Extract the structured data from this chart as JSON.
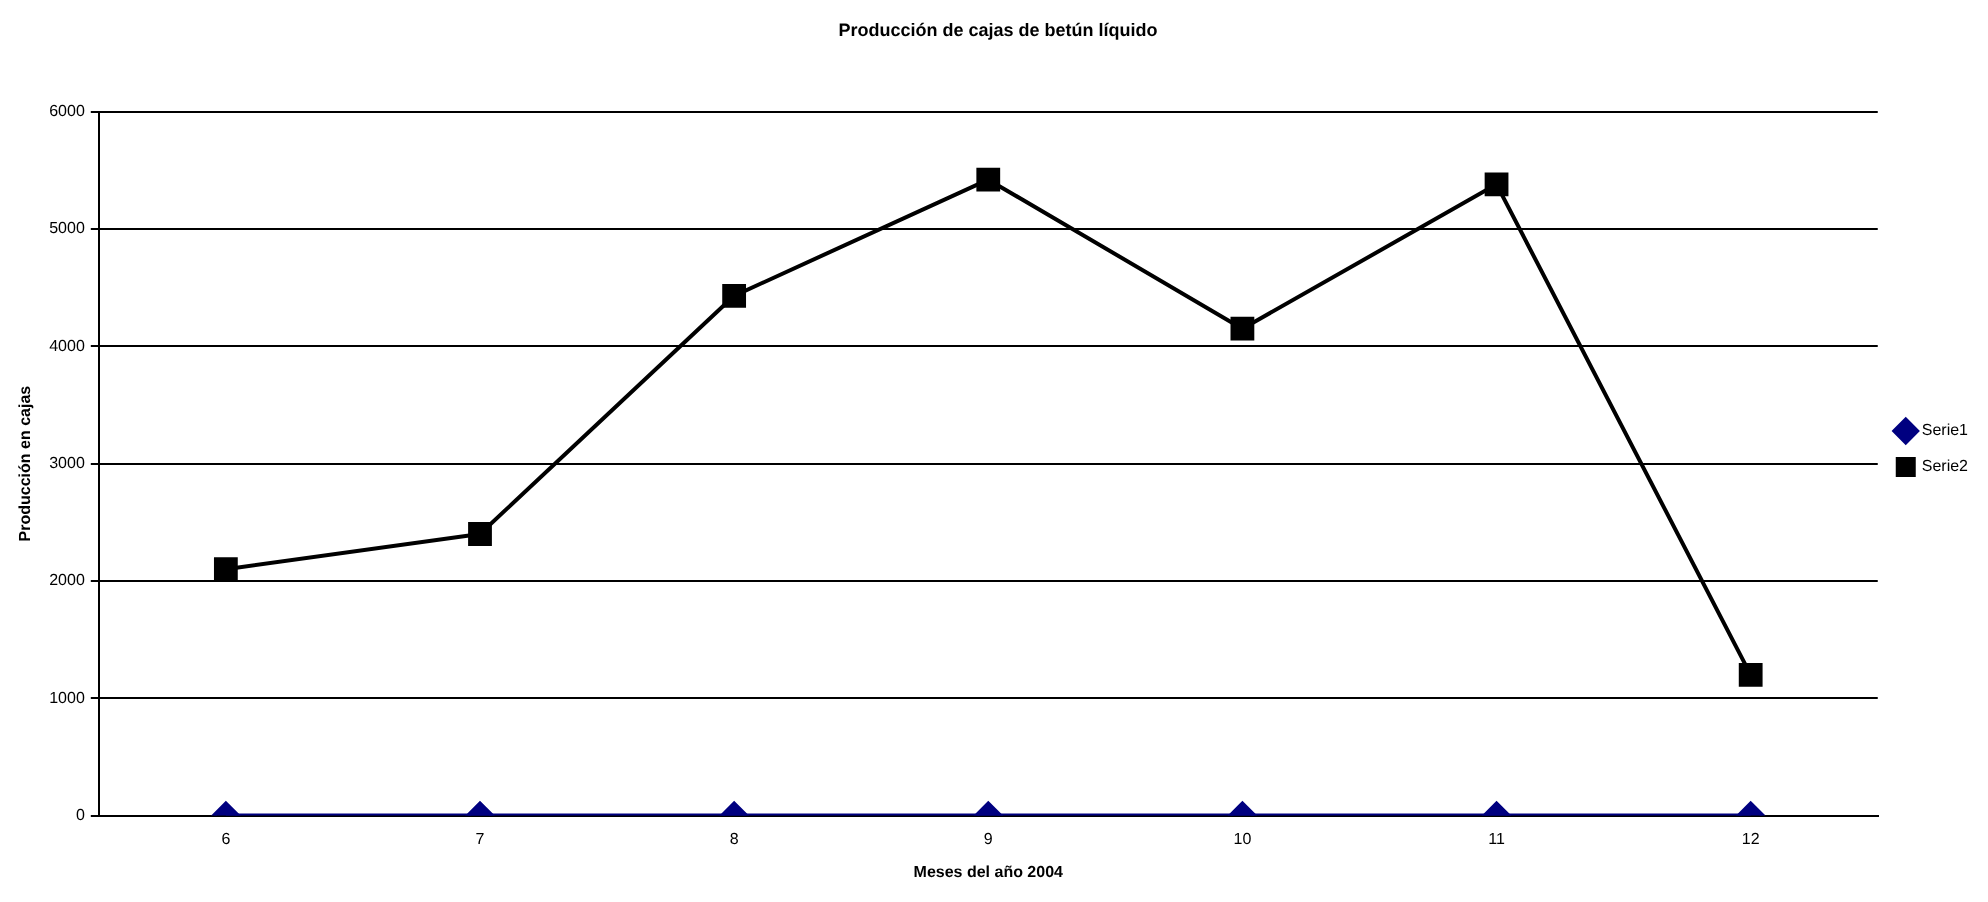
{
  "chart_data": {
    "type": "line",
    "title": "Producción de cajas de betún líquido",
    "xlabel": "Meses del año 2004",
    "ylabel": "Producción en cajas",
    "categories": [
      "6",
      "7",
      "8",
      "9",
      "10",
      "11",
      "12"
    ],
    "series": [
      {
        "name": "Serie1",
        "color": "#000080",
        "marker": "diamond",
        "values": [
          0,
          0,
          0,
          0,
          0,
          0,
          0
        ]
      },
      {
        "name": "Serie2",
        "color": "#000000",
        "marker": "square",
        "values": [
          2100,
          2400,
          4430,
          5420,
          4150,
          5380,
          1200
        ]
      }
    ],
    "ylim": [
      0,
      6000
    ],
    "yticks": [
      0,
      1000,
      2000,
      3000,
      4000,
      5000,
      6000
    ],
    "grid": "y",
    "legend": "right",
    "line_style": "solid"
  }
}
